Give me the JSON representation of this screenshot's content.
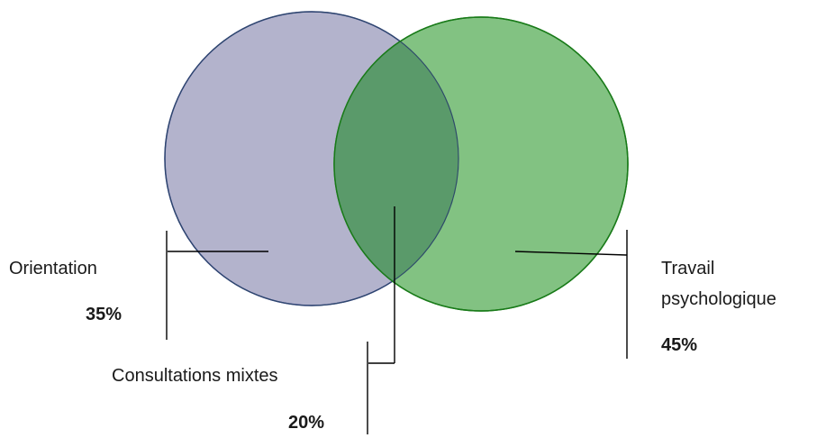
{
  "diagram": {
    "type": "venn",
    "sets": [
      {
        "id": "orientation",
        "label": "Orientation",
        "value_label": "35%",
        "fill": "#b3b3cc",
        "stroke": "#2e2e8f"
      },
      {
        "id": "travail",
        "label_lines": [
          "Travail",
          "psychologique"
        ],
        "value_label": "45%",
        "fill": "#82c282",
        "stroke": "#1a8a1a"
      }
    ],
    "intersection": {
      "label": "Consultations mixtes",
      "value_label": "20%",
      "fill": "#5a9a6a"
    }
  }
}
